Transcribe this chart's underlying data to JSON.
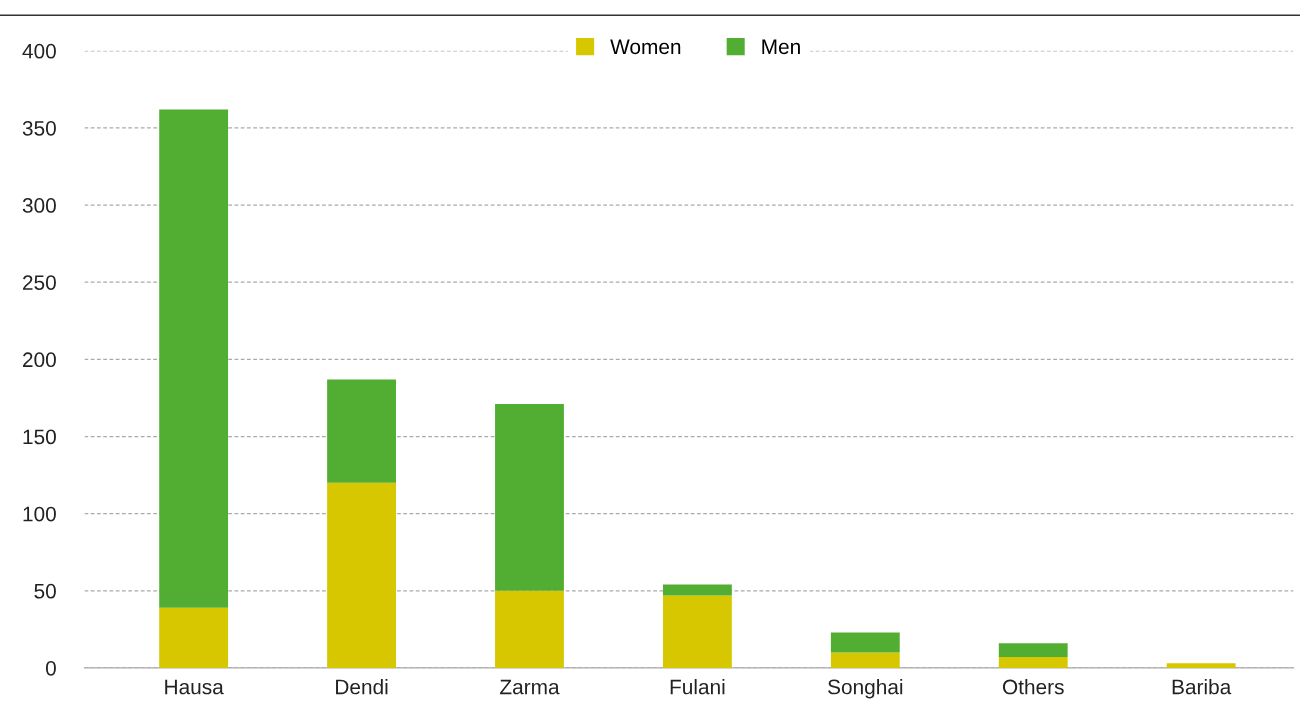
{
  "chart_data": {
    "type": "bar",
    "stacked": true,
    "categories": [
      "Hausa",
      "Dendi",
      "Zarma",
      "Fulani",
      "Songhai",
      "Others",
      "Bariba"
    ],
    "series": [
      {
        "name": "Women",
        "color": "#d7c700",
        "values": [
          39,
          120,
          50,
          47,
          10,
          7,
          3
        ]
      },
      {
        "name": "Men",
        "color": "#52ae32",
        "values": [
          323,
          67,
          121,
          7,
          13,
          9,
          0
        ]
      }
    ],
    "ylim": [
      0,
      400
    ],
    "yticks": [
      0,
      50,
      100,
      150,
      200,
      250,
      300,
      350,
      400
    ],
    "grid": "y",
    "legend": "top"
  }
}
